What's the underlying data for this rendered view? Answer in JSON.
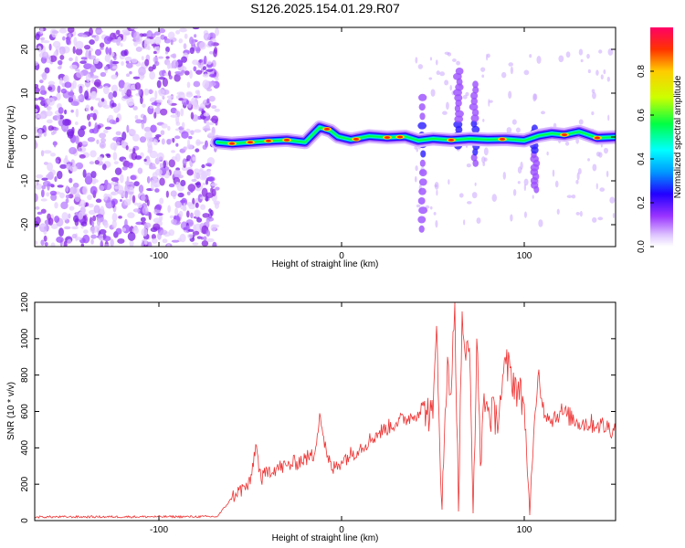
{
  "title": "S126.2025.154.01.29.R07",
  "colors": {
    "spec_purple": "#8a2be2",
    "snr_line": "#ee3333",
    "axis": "#000000"
  },
  "chart_data": [
    {
      "type": "heatmap",
      "xlabel": "Height of straight line (km)",
      "ylabel": "Frequency (Hz)",
      "xlim": [
        -168,
        150
      ],
      "ylim": [
        -25,
        25
      ],
      "xticks": [
        -100,
        0,
        100
      ],
      "yticks": [
        -20,
        -10,
        0,
        10,
        20
      ],
      "colorbar": {
        "label": "Normalized spectral amplitude",
        "range": [
          0,
          1
        ],
        "ticks": [
          "0.0",
          "0.2",
          "0.4",
          "0.6",
          "0.8"
        ],
        "colormap": [
          "#ffffff",
          "#e0c8ff",
          "#9933ff",
          "#2200ff",
          "#0099ff",
          "#00ffff",
          "#00ff44",
          "#ccff00",
          "#ffcc00",
          "#ff3300",
          "#ff0066"
        ]
      },
      "noise_region_x": [
        -168,
        -68
      ],
      "ridge": [
        [
          -68,
          -1.2
        ],
        [
          -60,
          -1.5
        ],
        [
          -50,
          -1.2
        ],
        [
          -40,
          -0.9
        ],
        [
          -30,
          -0.7
        ],
        [
          -20,
          -1.2
        ],
        [
          -12,
          2.2
        ],
        [
          -6,
          1.4
        ],
        [
          -2,
          0.1
        ],
        [
          5,
          -0.6
        ],
        [
          15,
          0.2
        ],
        [
          25,
          -0.1
        ],
        [
          35,
          0.1
        ],
        [
          42,
          -0.8
        ],
        [
          50,
          -0.4
        ],
        [
          60,
          -0.7
        ],
        [
          70,
          -0.4
        ],
        [
          80,
          -0.6
        ],
        [
          90,
          -0.5
        ],
        [
          100,
          -0.8
        ],
        [
          108,
          0.3
        ],
        [
          115,
          0.8
        ],
        [
          122,
          0.5
        ],
        [
          130,
          1.2
        ],
        [
          140,
          -0.2
        ],
        [
          150,
          0.0
        ]
      ],
      "bursts": [
        {
          "x": 73,
          "f_top": 12,
          "f_bottom": -6
        },
        {
          "x": 106,
          "f_top": 2,
          "f_bottom": -12
        },
        {
          "x": 64,
          "f_top": 15,
          "f_bottom": -2
        },
        {
          "x": 44,
          "f_top": 9,
          "f_bottom": -21
        }
      ]
    },
    {
      "type": "line",
      "xlabel": "Height of straight line (km)",
      "ylabel": "SNR (10 * v/v)",
      "xlim": [
        -168,
        150
      ],
      "ylim": [
        0,
        1200
      ],
      "xticks": [
        -100,
        0,
        100
      ],
      "yticks": [
        0,
        200,
        400,
        600,
        800,
        1000,
        1200
      ],
      "series": [
        {
          "color": "#ee3333",
          "x": [
            -168,
            -68,
            -58,
            -50,
            -47,
            -44,
            -40,
            -30,
            -20,
            -15,
            -12,
            -8,
            -5,
            0,
            10,
            20,
            30,
            40,
            45,
            50,
            52,
            55,
            58,
            60,
            62,
            64,
            66,
            68,
            70,
            72,
            74,
            76,
            78,
            80,
            85,
            90,
            100,
            103,
            106,
            108,
            110,
            115,
            120,
            130,
            140,
            150
          ],
          "y": [
            20,
            22,
            150,
            200,
            420,
            220,
            280,
            300,
            340,
            360,
            590,
            350,
            280,
            330,
            400,
            480,
            540,
            580,
            630,
            560,
            1070,
            60,
            900,
            700,
            1200,
            50,
            1150,
            880,
            950,
            40,
            1000,
            300,
            700,
            600,
            560,
            860,
            640,
            30,
            600,
            830,
            620,
            560,
            600,
            540,
            530,
            500
          ]
        }
      ]
    }
  ]
}
